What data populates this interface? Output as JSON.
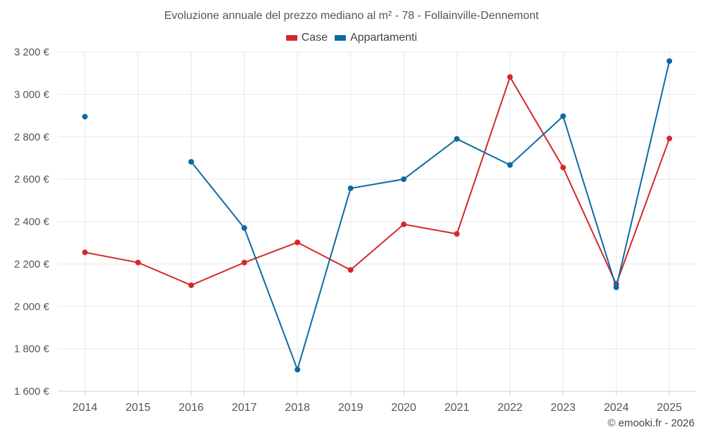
{
  "chart_data": {
    "type": "line",
    "title": "Evoluzione annuale del prezzo mediano al m² - 78 - Follainville-Dennemont",
    "categories": [
      "2014",
      "2015",
      "2016",
      "2017",
      "2018",
      "2019",
      "2020",
      "2021",
      "2022",
      "2023",
      "2024",
      "2025"
    ],
    "ylim": [
      1600,
      3200
    ],
    "yticks": [
      1600,
      1800,
      2000,
      2200,
      2400,
      2600,
      2800,
      3000,
      3200
    ],
    "ytick_labels": [
      "1 600 €",
      "1 800 €",
      "2 000 €",
      "2 200 €",
      "2 400 €",
      "2 600 €",
      "2 800 €",
      "3 000 €",
      "3 200 €"
    ],
    "grid": true,
    "legend_position": "top-center",
    "series": [
      {
        "name": "Case",
        "color": "#d62728",
        "values": [
          2255,
          2207,
          2100,
          2207,
          2302,
          2172,
          2387,
          2342,
          3082,
          2655,
          2105,
          2792
        ]
      },
      {
        "name": "Appartamenti",
        "color": "#0b6aa2",
        "values": [
          2895,
          null,
          2682,
          2370,
          1702,
          2557,
          2600,
          2790,
          2667,
          2897,
          2090,
          3157
        ]
      }
    ]
  },
  "credit": "© emooki.fr - 2026"
}
